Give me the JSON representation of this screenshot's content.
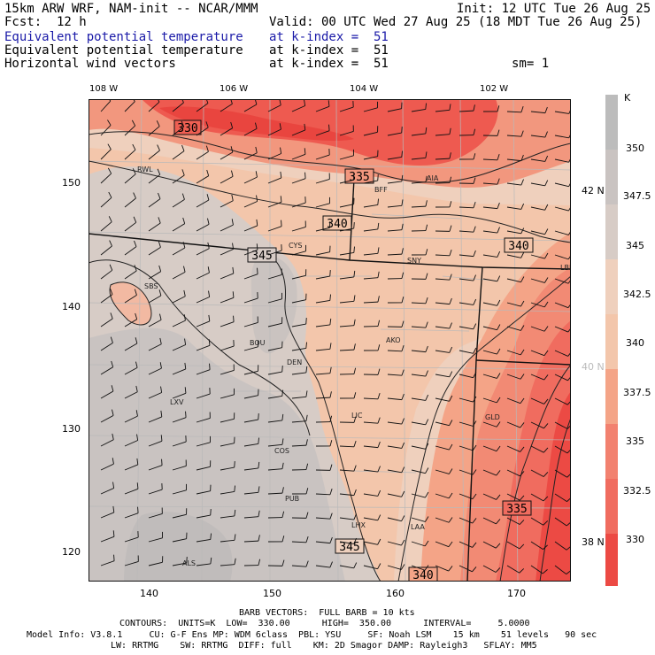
{
  "header": {
    "line1_left": "15km ARW WRF, NAM-init -- NCAR/MMM",
    "line1_right": "Init: 12 UTC Tue 26 Aug 25",
    "fcst_label": "Fcst:",
    "fcst_value": "12 h",
    "valid": "Valid: 00 UTC Wed 27 Aug 25 (18 MDT Tue 26 Aug 25)",
    "field1_name": "Equivalent potential temperature",
    "field1_level": "at k-index =  51",
    "field2_name": "Equivalent potential temperature",
    "field2_level": "at k-index =  51",
    "field3_name": "Horizontal wind vectors",
    "field3_level": "at k-index =  51",
    "smooth": "sm= 1"
  },
  "map": {
    "top_lon_labels": [
      "108 W",
      "106 W",
      "104 W",
      "102 W"
    ],
    "bottom_ticks": [
      "140",
      "150",
      "160",
      "170"
    ],
    "left_ticks": [
      "150",
      "140",
      "130",
      "120"
    ],
    "right_lat_labels": [
      "42 N",
      "40 N",
      "38 N"
    ],
    "stations": [
      "RWL",
      "CYS",
      "BFF",
      "AIA",
      "SNY",
      "LBF",
      "SBS",
      "BOU",
      "DEN",
      "AKO",
      "LXV",
      "LIC",
      "GLD",
      "COS",
      "PUB",
      "LHX",
      "LAA",
      "ALS"
    ],
    "contour_labels": [
      "330",
      "335",
      "340",
      "345",
      "340",
      "345",
      "335",
      "340"
    ],
    "colors": {
      "c330": "#ef4b4b",
      "c332": "#f0625c",
      "c335": "#f2816f",
      "c337": "#f4a083",
      "c340": "#f6bfa0",
      "c342": "#f0d2bf",
      "c345": "#dbcfc9",
      "c347": "#cbc6c4",
      "c350": "#bcbcbc"
    }
  },
  "colorbar": {
    "unit": "K",
    "labels": [
      "350",
      "347.5",
      "345",
      "342.5",
      "340",
      "337.5",
      "335",
      "332.5",
      "330"
    ]
  },
  "footer": {
    "barb": "BARB VECTORS:  FULL BARB = 10 kts",
    "contours": "CONTOURS:  UNITS=K  LOW=  330.00      HIGH=  350.00      INTERVAL=     5.0000",
    "model_info": "Model Info: V3.8.1     CU: G-F Ens MP: WDM 6class  PBL: YSU     SF: Noah LSM    15 km    51 levels   90 sec",
    "physics": "LW: RRTMG    SW: RRTMG  DIFF: full    KM: 2D Smagor DAMP: Rayleigh3   SFLAY: MM5"
  }
}
